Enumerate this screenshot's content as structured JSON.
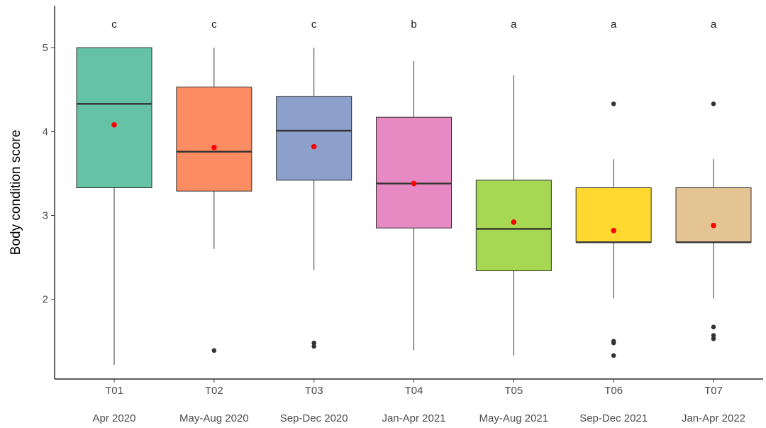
{
  "chart_data": {
    "type": "boxplot",
    "ylabel": "Body condition score",
    "xlabel": "",
    "ylim": [
      1.05,
      5.5
    ],
    "y_ticks": [
      2,
      3,
      4,
      5
    ],
    "grid": false,
    "legend": "none",
    "mean_marker_color": "#ff0000",
    "categories": [
      {
        "code": "T01",
        "period": "Apr 2020",
        "letter": "c",
        "color": "#66c2a5",
        "whisker_low": 1.22,
        "q1": 3.33,
        "median": 4.33,
        "q3": 5.0,
        "whisker_high": 5.0,
        "mean": 4.08,
        "outliers": []
      },
      {
        "code": "T02",
        "period": "May-Aug 2020",
        "letter": "c",
        "color": "#fc8d62",
        "whisker_low": 2.6,
        "q1": 3.29,
        "median": 3.76,
        "q3": 4.53,
        "whisker_high": 5.0,
        "mean": 3.81,
        "outliers": [
          1.39
        ]
      },
      {
        "code": "T03",
        "period": "Sep-Dec 2020",
        "letter": "c",
        "color": "#8da0cb",
        "whisker_low": 2.35,
        "q1": 3.42,
        "median": 4.01,
        "q3": 4.42,
        "whisker_high": 5.0,
        "mean": 3.82,
        "outliers": [
          1.48,
          1.44
        ]
      },
      {
        "code": "T04",
        "period": "Jan-Apr 2021",
        "letter": "b",
        "color": "#e78ac3",
        "whisker_low": 1.39,
        "q1": 2.85,
        "median": 3.38,
        "q3": 4.17,
        "whisker_high": 4.84,
        "mean": 3.38,
        "outliers": []
      },
      {
        "code": "T05",
        "period": "May-Aug 2021",
        "letter": "a",
        "color": "#a6d854",
        "whisker_low": 1.33,
        "q1": 2.34,
        "median": 2.84,
        "q3": 3.42,
        "whisker_high": 4.67,
        "mean": 2.92,
        "outliers": []
      },
      {
        "code": "T06",
        "period": "Sep-Dec 2021",
        "letter": "a",
        "color": "#ffd92f",
        "whisker_low": 2.01,
        "q1": 2.68,
        "median": 2.68,
        "q3": 3.33,
        "whisker_high": 3.67,
        "mean": 2.82,
        "outliers": [
          4.33,
          1.5,
          1.48,
          1.33
        ]
      },
      {
        "code": "T07",
        "period": "Jan-Apr 2022",
        "letter": "a",
        "color": "#e5c494",
        "whisker_low": 2.01,
        "q1": 2.68,
        "median": 2.68,
        "q3": 3.33,
        "whisker_high": 3.67,
        "mean": 2.88,
        "outliers": [
          4.33,
          1.67,
          1.57,
          1.53
        ]
      }
    ]
  }
}
